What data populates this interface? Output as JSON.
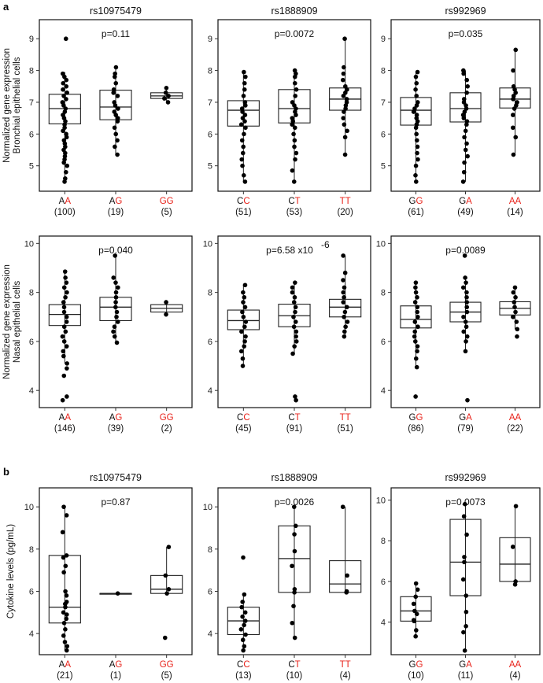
{
  "figure": {
    "section_a_label": "a",
    "section_b_label": "b",
    "row_ylabels": [
      [
        "Normalized gene expression",
        "Bronchial epithelial cells"
      ],
      [
        "Normalized gene expression",
        "Nasal epithelial cells"
      ],
      [
        "Cytokine levels (pg/mL)"
      ]
    ],
    "colors": {
      "reference_allele": "#111111",
      "alternate_allele": "#e8231b",
      "box": "#222222",
      "points": "#000000"
    }
  },
  "chart_data": [
    {
      "type": "box",
      "section": "a",
      "title": "rs10975479",
      "ylabel": "Normalized gene expression Bronchial epithelial cells",
      "pvalue": "p=0.11",
      "ylim": [
        4.2,
        9.6
      ],
      "yticks": [
        5,
        6,
        7,
        8,
        9
      ],
      "groups": [
        {
          "label": "AA",
          "ref": "A",
          "alt": "A",
          "n": "(100)",
          "q1": 6.32,
          "median": 6.8,
          "q3": 7.25,
          "whisker_low": 4.5,
          "whisker_high": 7.95,
          "points": [
            9.0,
            7.9,
            7.8,
            7.7,
            7.6,
            7.5,
            7.4,
            7.3,
            7.2,
            7.1,
            7.0,
            6.9,
            6.8,
            6.7,
            6.6,
            6.5,
            6.4,
            6.3,
            6.2,
            6.1,
            6.0,
            5.9,
            5.8,
            5.7,
            5.6,
            5.5,
            5.4,
            5.3,
            5.2,
            5.1,
            5.0,
            4.8,
            4.6,
            4.5
          ]
        },
        {
          "label": "AG",
          "ref": "A",
          "alt": "G",
          "n": "(19)",
          "q1": 6.45,
          "median": 6.85,
          "q3": 7.38,
          "whisker_low": 5.35,
          "whisker_high": 8.1,
          "points": [
            8.1,
            7.9,
            7.8,
            7.6,
            7.4,
            7.3,
            7.2,
            7.0,
            6.9,
            6.8,
            6.7,
            6.6,
            6.5,
            6.4,
            6.2,
            6.0,
            5.8,
            5.6,
            5.35
          ]
        },
        {
          "label": "GG",
          "ref": "",
          "alt": "GG",
          "n": "(5)",
          "q1": 7.12,
          "median": 7.2,
          "q3": 7.3,
          "whisker_low": 7.0,
          "whisker_high": 7.45,
          "points": [
            7.45,
            7.3,
            7.2,
            7.12,
            7.0
          ]
        }
      ]
    },
    {
      "type": "box",
      "section": "a",
      "title": "rs1888909",
      "pvalue": "p=0.0072",
      "ylim": [
        4.2,
        9.6
      ],
      "yticks": [
        5,
        6,
        7,
        8,
        9
      ],
      "groups": [
        {
          "label": "CC",
          "ref": "C",
          "alt": "C",
          "n": "(51)",
          "q1": 6.25,
          "median": 6.75,
          "q3": 7.05,
          "whisker_low": 4.5,
          "whisker_high": 7.95,
          "points": [
            7.95,
            7.8,
            7.6,
            7.4,
            7.2,
            7.0,
            6.9,
            6.8,
            6.7,
            6.6,
            6.5,
            6.4,
            6.3,
            6.2,
            6.0,
            5.8,
            5.6,
            5.4,
            5.2,
            5.0,
            4.7,
            4.5
          ]
        },
        {
          "label": "CT",
          "ref": "C",
          "alt": "T",
          "n": "(53)",
          "q1": 6.35,
          "median": 6.8,
          "q3": 7.4,
          "whisker_low": 4.5,
          "whisker_high": 8.0,
          "points": [
            8.0,
            7.9,
            7.8,
            7.6,
            7.4,
            7.2,
            7.0,
            6.9,
            6.8,
            6.7,
            6.6,
            6.5,
            6.4,
            6.3,
            6.2,
            6.0,
            5.8,
            5.6,
            5.4,
            5.2,
            4.85,
            4.5
          ]
        },
        {
          "label": "TT",
          "ref": "",
          "alt": "TT",
          "n": "(20)",
          "q1": 6.75,
          "median": 7.1,
          "q3": 7.45,
          "whisker_low": 5.35,
          "whisker_high": 9.0,
          "points": [
            9.0,
            8.1,
            7.9,
            7.7,
            7.5,
            7.4,
            7.3,
            7.2,
            7.1,
            7.0,
            6.9,
            6.8,
            6.7,
            6.5,
            6.3,
            6.1,
            5.9,
            5.35
          ]
        }
      ]
    },
    {
      "type": "box",
      "section": "a",
      "title": "rs992969",
      "pvalue": "p=0.035",
      "ylim": [
        4.2,
        9.6
      ],
      "yticks": [
        5,
        6,
        7,
        8,
        9
      ],
      "groups": [
        {
          "label": "GG",
          "ref": "G",
          "alt": "G",
          "n": "(61)",
          "q1": 6.28,
          "median": 6.75,
          "q3": 7.15,
          "whisker_low": 4.5,
          "whisker_high": 7.95,
          "points": [
            7.95,
            7.8,
            7.6,
            7.4,
            7.2,
            7.0,
            6.9,
            6.8,
            6.7,
            6.6,
            6.5,
            6.4,
            6.3,
            6.2,
            6.0,
            5.8,
            5.6,
            5.4,
            5.2,
            5.0,
            4.7,
            4.5
          ]
        },
        {
          "label": "GA",
          "ref": "G",
          "alt": "A",
          "n": "(49)",
          "q1": 6.38,
          "median": 6.8,
          "q3": 7.3,
          "whisker_low": 4.5,
          "whisker_high": 8.0,
          "points": [
            8.0,
            7.9,
            7.7,
            7.5,
            7.3,
            7.1,
            7.0,
            6.9,
            6.8,
            6.7,
            6.6,
            6.5,
            6.4,
            6.3,
            6.1,
            5.9,
            5.7,
            5.5,
            5.3,
            5.1,
            4.8,
            4.5
          ]
        },
        {
          "label": "AA",
          "ref": "",
          "alt": "AA",
          "n": "(14)",
          "q1": 6.82,
          "median": 7.1,
          "q3": 7.45,
          "whisker_low": 5.35,
          "whisker_high": 8.65,
          "points": [
            8.65,
            8.0,
            7.5,
            7.4,
            7.3,
            7.2,
            7.1,
            7.0,
            6.9,
            6.8,
            6.6,
            6.2,
            5.9,
            5.35
          ]
        }
      ]
    },
    {
      "type": "box",
      "section": "a",
      "title": "",
      "ylabel": "Normalized gene expression Nasal epithelial cells",
      "pvalue": "p=0.040",
      "ylim": [
        3.3,
        10.3
      ],
      "yticks": [
        4,
        6,
        8,
        10
      ],
      "groups": [
        {
          "label": "AA",
          "ref": "A",
          "alt": "A",
          "n": "(146)",
          "q1": 6.65,
          "median": 7.1,
          "q3": 7.5,
          "whisker_low": 5.1,
          "whisker_high": 8.85,
          "points": [
            8.85,
            8.6,
            8.4,
            8.2,
            8.0,
            7.8,
            7.6,
            7.4,
            7.2,
            7.0,
            6.8,
            6.6,
            6.4,
            6.2,
            6.0,
            5.8,
            5.6,
            5.4,
            5.1,
            4.9,
            4.6,
            3.75,
            3.6
          ]
        },
        {
          "label": "AG",
          "ref": "A",
          "alt": "G",
          "n": "(39)",
          "q1": 6.85,
          "median": 7.4,
          "q3": 7.8,
          "whisker_low": 5.95,
          "whisker_high": 9.5,
          "points": [
            9.5,
            8.6,
            8.4,
            8.2,
            8.0,
            7.8,
            7.6,
            7.4,
            7.2,
            7.0,
            6.8,
            6.6,
            6.4,
            6.2,
            5.95
          ]
        },
        {
          "label": "GG",
          "ref": "",
          "alt": "GG",
          "n": "(2)",
          "q1": 7.2,
          "median": 7.35,
          "q3": 7.5,
          "whisker_low": 7.1,
          "whisker_high": 7.6,
          "points": [
            7.6,
            7.1
          ]
        }
      ]
    },
    {
      "type": "box",
      "section": "a",
      "title": "",
      "pvalue": "p=6.58 x10",
      "pvalue_exponent": "-6",
      "ylim": [
        3.3,
        10.3
      ],
      "yticks": [
        4,
        6,
        8,
        10
      ],
      "groups": [
        {
          "label": "CC",
          "ref": "C",
          "alt": "C",
          "n": "(45)",
          "q1": 6.48,
          "median": 6.85,
          "q3": 7.28,
          "whisker_low": 5.0,
          "whisker_high": 8.3,
          "points": [
            8.3,
            8.0,
            7.8,
            7.6,
            7.4,
            7.2,
            7.0,
            6.8,
            6.6,
            6.4,
            6.2,
            6.0,
            5.8,
            5.6,
            5.3,
            5.0
          ]
        },
        {
          "label": "CT",
          "ref": "C",
          "alt": "T",
          "n": "(91)",
          "q1": 6.6,
          "median": 7.05,
          "q3": 7.52,
          "whisker_low": 5.5,
          "whisker_high": 8.4,
          "points": [
            8.4,
            8.2,
            8.0,
            7.8,
            7.6,
            7.4,
            7.2,
            7.0,
            6.8,
            6.6,
            6.4,
            6.2,
            6.0,
            5.8,
            5.5,
            3.75,
            3.6
          ]
        },
        {
          "label": "TT",
          "ref": "",
          "alt": "TT",
          "n": "(51)",
          "q1": 7.0,
          "median": 7.4,
          "q3": 7.72,
          "whisker_low": 6.2,
          "whisker_high": 9.5,
          "points": [
            9.5,
            8.8,
            8.5,
            8.2,
            8.0,
            7.8,
            7.6,
            7.4,
            7.2,
            7.0,
            6.8,
            6.6,
            6.4,
            6.2
          ]
        }
      ]
    },
    {
      "type": "box",
      "section": "a",
      "title": "",
      "pvalue": "p=0.0089",
      "ylim": [
        3.3,
        10.3
      ],
      "yticks": [
        4,
        6,
        8,
        10
      ],
      "groups": [
        {
          "label": "GG",
          "ref": "G",
          "alt": "G",
          "n": "(86)",
          "q1": 6.55,
          "median": 6.9,
          "q3": 7.45,
          "whisker_low": 4.95,
          "whisker_high": 8.4,
          "points": [
            8.4,
            8.2,
            8.0,
            7.8,
            7.6,
            7.4,
            7.2,
            7.0,
            6.8,
            6.6,
            6.4,
            6.2,
            6.0,
            5.8,
            5.6,
            5.3,
            4.95,
            3.75
          ]
        },
        {
          "label": "GA",
          "ref": "G",
          "alt": "A",
          "n": "(79)",
          "q1": 6.8,
          "median": 7.2,
          "q3": 7.6,
          "whisker_low": 5.6,
          "whisker_high": 8.6,
          "points": [
            9.5,
            8.6,
            8.4,
            8.2,
            8.0,
            7.8,
            7.6,
            7.4,
            7.2,
            7.0,
            6.8,
            6.6,
            6.4,
            6.2,
            6.0,
            5.6,
            3.6
          ]
        },
        {
          "label": "AA",
          "ref": "",
          "alt": "AA",
          "n": "(22)",
          "q1": 7.08,
          "median": 7.35,
          "q3": 7.62,
          "whisker_low": 6.5,
          "whisker_high": 8.2,
          "points": [
            8.2,
            8.0,
            7.8,
            7.6,
            7.4,
            7.2,
            7.0,
            6.8,
            6.5,
            6.2
          ]
        }
      ]
    },
    {
      "type": "box",
      "section": "b",
      "title": "rs10975479",
      "ylabel": "Cytokine levels (pg/mL)",
      "pvalue": "p=0.87",
      "ylim": [
        3.0,
        10.9
      ],
      "yticks": [
        4,
        6,
        8,
        10
      ],
      "groups": [
        {
          "label": "AA",
          "ref": "A",
          "alt": "A",
          "n": "(21)",
          "q1": 4.5,
          "median": 5.25,
          "q3": 7.7,
          "whisker_low": 3.2,
          "whisker_high": 10.0,
          "points": [
            10.0,
            9.6,
            8.8,
            7.7,
            7.6,
            7.2,
            6.9,
            6.0,
            5.8,
            5.5,
            5.4,
            5.25,
            5.0,
            4.9,
            4.7,
            4.5,
            4.2,
            3.9,
            3.6,
            3.4,
            3.2
          ]
        },
        {
          "label": "AG",
          "ref": "A",
          "alt": "G",
          "n": "(1)",
          "q1": 5.9,
          "median": 5.9,
          "q3": 5.9,
          "whisker_low": 5.9,
          "whisker_high": 5.9,
          "points": [
            5.9
          ]
        },
        {
          "label": "GG",
          "ref": "",
          "alt": "GG",
          "n": "(5)",
          "q1": 5.9,
          "median": 6.1,
          "q3": 6.75,
          "whisker_low": 5.9,
          "whisker_high": 8.1,
          "points": [
            8.1,
            6.75,
            6.1,
            5.9,
            3.8
          ]
        }
      ]
    },
    {
      "type": "box",
      "section": "b",
      "title": "rs1888909",
      "pvalue": "p=0.0026",
      "ylim": [
        3.0,
        10.9
      ],
      "yticks": [
        4,
        6,
        8,
        10
      ],
      "groups": [
        {
          "label": "CC",
          "ref": "C",
          "alt": "C",
          "n": "(13)",
          "q1": 3.95,
          "median": 4.6,
          "q3": 5.25,
          "whisker_low": 3.2,
          "whisker_high": 5.85,
          "points": [
            7.6,
            5.85,
            5.5,
            5.25,
            5.0,
            4.8,
            4.6,
            4.4,
            4.2,
            3.95,
            3.7,
            3.4,
            3.2
          ]
        },
        {
          "label": "CT",
          "ref": "C",
          "alt": "T",
          "n": "(10)",
          "q1": 5.95,
          "median": 7.55,
          "q3": 9.1,
          "whisker_low": 3.8,
          "whisker_high": 10.0,
          "points": [
            10.0,
            9.1,
            8.7,
            7.9,
            7.2,
            6.1,
            5.95,
            5.3,
            4.5,
            3.8
          ]
        },
        {
          "label": "TT",
          "ref": "",
          "alt": "TT",
          "n": "(4)",
          "q1": 5.95,
          "median": 6.35,
          "q3": 7.45,
          "whisker_low": 5.95,
          "whisker_high": 10.0,
          "points": [
            10.0,
            6.75,
            6.0,
            5.95
          ]
        }
      ]
    },
    {
      "type": "box",
      "section": "b",
      "title": "rs992969",
      "pvalue": "p=0.0073",
      "ylim": [
        2.4,
        10.6
      ],
      "yticks": [
        4,
        6,
        8,
        10
      ],
      "groups": [
        {
          "label": "GG",
          "ref": "G",
          "alt": "G",
          "n": "(10)",
          "q1": 4.05,
          "median": 4.55,
          "q3": 5.25,
          "whisker_low": 3.3,
          "whisker_high": 5.9,
          "points": [
            5.9,
            5.6,
            5.25,
            4.9,
            4.55,
            4.4,
            4.1,
            4.05,
            3.6,
            3.3
          ]
        },
        {
          "label": "GA",
          "ref": "G",
          "alt": "A",
          "n": "(11)",
          "q1": 5.3,
          "median": 6.95,
          "q3": 9.05,
          "whisker_low": 2.6,
          "whisker_high": 9.8,
          "points": [
            9.8,
            9.2,
            8.3,
            7.2,
            6.95,
            6.1,
            5.3,
            4.5,
            3.8,
            3.5,
            2.6
          ]
        },
        {
          "label": "AA",
          "ref": "",
          "alt": "AA",
          "n": "(4)",
          "q1": 6.0,
          "median": 6.85,
          "q3": 8.15,
          "whisker_low": 5.85,
          "whisker_high": 9.7,
          "points": [
            9.7,
            7.7,
            6.0,
            5.85
          ]
        }
      ]
    }
  ]
}
